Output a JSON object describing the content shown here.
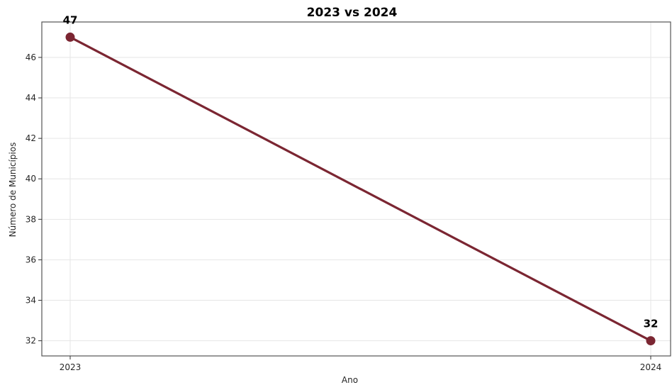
{
  "chart_data": {
    "type": "line",
    "title": "2023 vs 2024",
    "xlabel": "Ano",
    "ylabel": "Número de Municípios",
    "x": [
      "2023",
      "2024"
    ],
    "series": [
      {
        "values": [
          47,
          32
        ],
        "color": "#7b2632"
      }
    ],
    "data_labels": [
      "47",
      "32"
    ],
    "ylim": [
      31.25,
      47.75
    ],
    "yticks": [
      32,
      34,
      36,
      38,
      40,
      42,
      44,
      46
    ],
    "grid": true,
    "legend": "none"
  }
}
